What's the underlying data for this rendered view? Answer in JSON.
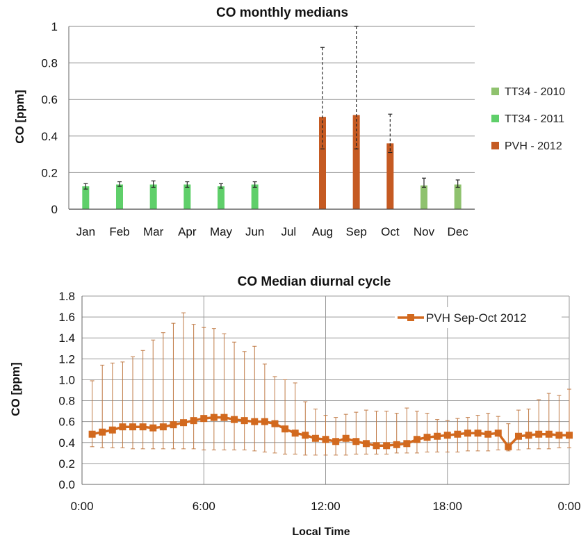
{
  "chart_data": [
    {
      "type": "bar",
      "title": "CO monthly medians",
      "ylabel": "CO [ppm]",
      "ylim": [
        0,
        1
      ],
      "yticks": [
        "0",
        "0.2",
        "0.4",
        "0.6",
        "0.8",
        "1"
      ],
      "categories": [
        "Jan",
        "Feb",
        "Mar",
        "Apr",
        "May",
        "Jun",
        "Jul",
        "Aug",
        "Sep",
        "Oct",
        "Nov",
        "Dec"
      ],
      "legend_position": "right",
      "grid": true,
      "series": [
        {
          "name": "TT34 - 2010",
          "color": "#8fc26e",
          "values": [
            null,
            null,
            null,
            null,
            null,
            null,
            null,
            null,
            null,
            null,
            0.13,
            0.135
          ],
          "error_low": [
            null,
            null,
            null,
            null,
            null,
            null,
            null,
            null,
            null,
            null,
            0.12,
            0.12
          ],
          "error_high": [
            null,
            null,
            null,
            null,
            null,
            null,
            null,
            null,
            null,
            null,
            0.17,
            0.16
          ]
        },
        {
          "name": "TT34 - 2011",
          "color": "#5fcf6a",
          "values": [
            0.125,
            0.135,
            0.135,
            0.135,
            0.125,
            0.135,
            null,
            null,
            null,
            null,
            null,
            null
          ],
          "error_low": [
            0.11,
            0.125,
            0.12,
            0.12,
            0.115,
            0.12,
            null,
            null,
            null,
            null,
            null,
            null
          ],
          "error_high": [
            0.14,
            0.15,
            0.155,
            0.15,
            0.14,
            0.15,
            null,
            null,
            null,
            null,
            null,
            null
          ]
        },
        {
          "name": "PVH - 2012",
          "color": "#c55a22",
          "values": [
            null,
            null,
            null,
            null,
            null,
            null,
            null,
            0.505,
            0.515,
            0.36,
            null,
            null
          ],
          "error_low": [
            null,
            null,
            null,
            null,
            null,
            null,
            null,
            0.33,
            0.33,
            0.31,
            null,
            null
          ],
          "error_high": [
            null,
            null,
            null,
            null,
            null,
            null,
            null,
            0.885,
            1.0,
            0.52,
            null,
            null
          ]
        }
      ]
    },
    {
      "type": "line",
      "title": "CO Median diurnal cycle",
      "xlabel": "Local Time",
      "ylabel": "CO [ppm]",
      "ylim": [
        0,
        1.8
      ],
      "yticks": [
        "0.0",
        "0.2",
        "0.4",
        "0.6",
        "0.8",
        "1.0",
        "1.2",
        "1.4",
        "1.6",
        "1.8"
      ],
      "xlim": [
        0,
        24
      ],
      "xticks": [
        {
          "value": 0,
          "label": "0:00"
        },
        {
          "value": 6,
          "label": "6:00"
        },
        {
          "value": 12,
          "label": "12:00"
        },
        {
          "value": 18,
          "label": "18:00"
        },
        {
          "value": 24,
          "label": "0:00"
        }
      ],
      "legend_position": "top-right",
      "grid": true,
      "series": [
        {
          "name": "PVH Sep-Oct 2012",
          "color": "#d2691e",
          "x": [
            0.5,
            1.0,
            1.5,
            2.0,
            2.5,
            3.0,
            3.5,
            4.0,
            4.5,
            5.0,
            5.5,
            6.0,
            6.5,
            7.0,
            7.5,
            8.0,
            8.5,
            9.0,
            9.5,
            10.0,
            10.5,
            11.0,
            11.5,
            12.0,
            12.5,
            13.0,
            13.5,
            14.0,
            14.5,
            15.0,
            15.5,
            16.0,
            16.5,
            17.0,
            17.5,
            18.0,
            18.5,
            19.0,
            19.5,
            20.0,
            20.5,
            21.0,
            21.5,
            22.0,
            22.5,
            23.0,
            23.5,
            24.0
          ],
          "values": [
            0.48,
            0.5,
            0.52,
            0.55,
            0.55,
            0.55,
            0.54,
            0.55,
            0.57,
            0.59,
            0.61,
            0.63,
            0.64,
            0.64,
            0.62,
            0.61,
            0.6,
            0.6,
            0.58,
            0.53,
            0.49,
            0.47,
            0.44,
            0.43,
            0.41,
            0.44,
            0.41,
            0.39,
            0.37,
            0.37,
            0.38,
            0.39,
            0.43,
            0.45,
            0.46,
            0.47,
            0.48,
            0.49,
            0.49,
            0.48,
            0.49,
            0.36,
            0.46,
            0.47,
            0.48,
            0.48,
            0.47,
            0.47
          ],
          "error_low": [
            0.36,
            0.35,
            0.35,
            0.35,
            0.34,
            0.34,
            0.34,
            0.34,
            0.34,
            0.34,
            0.34,
            0.33,
            0.33,
            0.33,
            0.33,
            0.33,
            0.32,
            0.31,
            0.3,
            0.29,
            0.29,
            0.28,
            0.28,
            0.28,
            0.28,
            0.28,
            0.29,
            0.29,
            0.29,
            0.29,
            0.3,
            0.3,
            0.3,
            0.31,
            0.31,
            0.31,
            0.31,
            0.32,
            0.32,
            0.32,
            0.33,
            0.32,
            0.33,
            0.34,
            0.34,
            0.34,
            0.35,
            0.35
          ],
          "error_high": [
            0.99,
            1.14,
            1.16,
            1.17,
            1.22,
            1.28,
            1.38,
            1.45,
            1.54,
            1.64,
            1.53,
            1.5,
            1.49,
            1.44,
            1.36,
            1.27,
            1.32,
            1.15,
            1.03,
            1.0,
            0.97,
            0.79,
            0.72,
            0.66,
            0.64,
            0.67,
            0.69,
            0.71,
            0.7,
            0.7,
            0.68,
            0.73,
            0.7,
            0.68,
            0.62,
            0.61,
            0.63,
            0.64,
            0.66,
            0.68,
            0.65,
            0.58,
            0.71,
            0.72,
            0.81,
            0.87,
            0.85,
            0.91
          ]
        }
      ]
    }
  ]
}
